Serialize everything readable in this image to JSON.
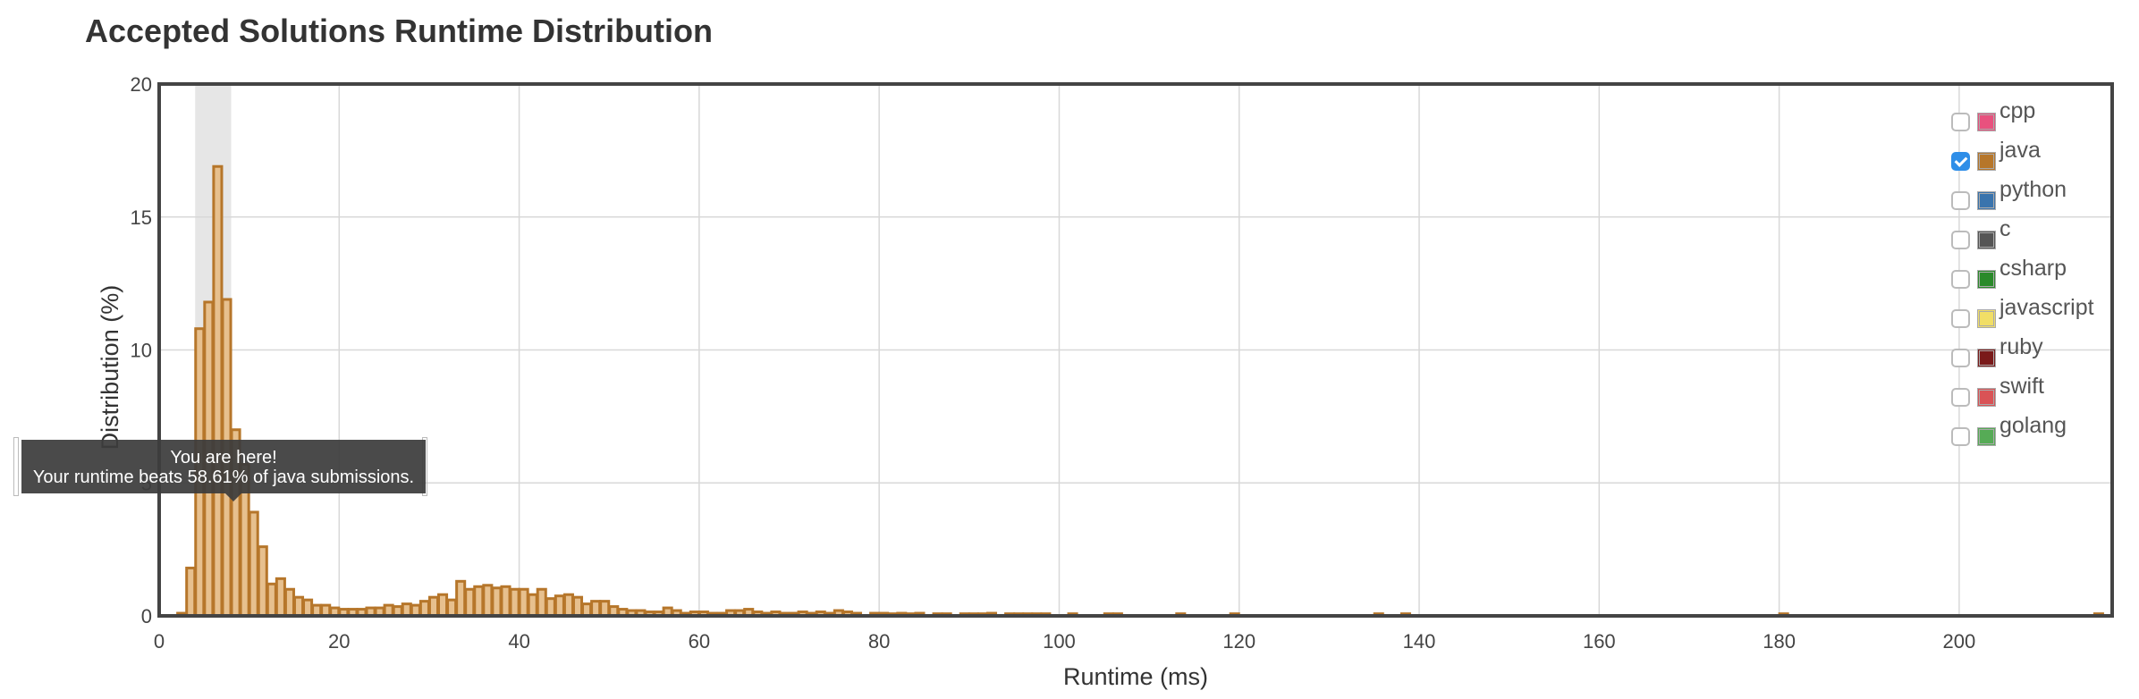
{
  "title": "Accepted Solutions Runtime Distribution",
  "legend": [
    {
      "name": "cpp",
      "color": "#e8517e",
      "checked": false
    },
    {
      "name": "java",
      "color": "#b6762a",
      "checked": true
    },
    {
      "name": "python",
      "color": "#3a74ad",
      "checked": false
    },
    {
      "name": "c",
      "color": "#555555",
      "checked": false
    },
    {
      "name": "csharp",
      "color": "#2a8a2a",
      "checked": false
    },
    {
      "name": "javascript",
      "color": "#f1de66",
      "checked": false
    },
    {
      "name": "ruby",
      "color": "#7a1a1a",
      "checked": false
    },
    {
      "name": "swift",
      "color": "#d95356",
      "checked": false
    },
    {
      "name": "golang",
      "color": "#56ab56",
      "checked": false
    }
  ],
  "tooltip": {
    "line1": "You are here!",
    "line2": "Your runtime beats 58.61% of java submissions."
  },
  "colors": {
    "bar_fill": "#e7c08e",
    "bar_stroke": "#b6762a",
    "highlight": "#e6e6e6",
    "grid": "#d8d8d8",
    "frame": "#444444"
  },
  "chart_data": {
    "type": "bar",
    "title": "Accepted Solutions Runtime Distribution",
    "xlabel": "Runtime (ms)",
    "ylabel": "Distribution (%)",
    "xlim": [
      0,
      217
    ],
    "ylim": [
      0,
      20
    ],
    "xticks": [
      0,
      20,
      40,
      60,
      80,
      100,
      120,
      140,
      160,
      180,
      200
    ],
    "yticks": [
      0,
      5,
      10,
      15,
      20
    ],
    "grid": true,
    "legend_position": "top-right",
    "series_name": "java",
    "highlight_range": [
      4,
      8
    ],
    "bin_width": 1,
    "bins": [
      [
        2,
        0.1
      ],
      [
        3,
        1.8
      ],
      [
        4,
        10.8
      ],
      [
        5,
        11.8
      ],
      [
        6,
        16.9
      ],
      [
        7,
        11.9
      ],
      [
        8,
        7.0
      ],
      [
        9,
        5.7
      ],
      [
        10,
        3.9
      ],
      [
        11,
        2.6
      ],
      [
        12,
        1.2
      ],
      [
        13,
        1.4
      ],
      [
        14,
        1.0
      ],
      [
        15,
        0.7
      ],
      [
        16,
        0.6
      ],
      [
        17,
        0.4
      ],
      [
        18,
        0.4
      ],
      [
        19,
        0.3
      ],
      [
        20,
        0.25
      ],
      [
        21,
        0.25
      ],
      [
        22,
        0.25
      ],
      [
        23,
        0.3
      ],
      [
        24,
        0.3
      ],
      [
        25,
        0.4
      ],
      [
        26,
        0.35
      ],
      [
        27,
        0.45
      ],
      [
        28,
        0.4
      ],
      [
        29,
        0.55
      ],
      [
        30,
        0.7
      ],
      [
        31,
        0.8
      ],
      [
        32,
        0.6
      ],
      [
        33,
        1.3
      ],
      [
        34,
        1.0
      ],
      [
        35,
        1.1
      ],
      [
        36,
        1.15
      ],
      [
        37,
        1.05
      ],
      [
        38,
        1.1
      ],
      [
        39,
        1.0
      ],
      [
        40,
        1.0
      ],
      [
        41,
        0.8
      ],
      [
        42,
        1.0
      ],
      [
        43,
        0.65
      ],
      [
        44,
        0.75
      ],
      [
        45,
        0.8
      ],
      [
        46,
        0.7
      ],
      [
        47,
        0.45
      ],
      [
        48,
        0.55
      ],
      [
        49,
        0.55
      ],
      [
        50,
        0.35
      ],
      [
        51,
        0.25
      ],
      [
        52,
        0.2
      ],
      [
        53,
        0.2
      ],
      [
        54,
        0.15
      ],
      [
        55,
        0.15
      ],
      [
        56,
        0.3
      ],
      [
        57,
        0.2
      ],
      [
        58,
        0.1
      ],
      [
        59,
        0.15
      ],
      [
        60,
        0.15
      ],
      [
        61,
        0.1
      ],
      [
        62,
        0.1
      ],
      [
        63,
        0.2
      ],
      [
        64,
        0.2
      ],
      [
        65,
        0.25
      ],
      [
        66,
        0.15
      ],
      [
        67,
        0.1
      ],
      [
        68,
        0.15
      ],
      [
        69,
        0.1
      ],
      [
        70,
        0.1
      ],
      [
        71,
        0.15
      ],
      [
        72,
        0.1
      ],
      [
        73,
        0.15
      ],
      [
        74,
        0.1
      ],
      [
        75,
        0.2
      ],
      [
        76,
        0.15
      ],
      [
        77,
        0.1
      ],
      [
        79,
        0.1
      ],
      [
        80,
        0.1
      ],
      [
        81,
        0.08
      ],
      [
        82,
        0.1
      ],
      [
        83,
        0.08
      ],
      [
        84,
        0.1
      ],
      [
        86,
        0.08
      ],
      [
        87,
        0.08
      ],
      [
        89,
        0.08
      ],
      [
        90,
        0.08
      ],
      [
        91,
        0.08
      ],
      [
        92,
        0.1
      ],
      [
        94,
        0.08
      ],
      [
        95,
        0.08
      ],
      [
        96,
        0.08
      ],
      [
        97,
        0.08
      ],
      [
        98,
        0.08
      ],
      [
        101,
        0.08
      ],
      [
        105,
        0.08
      ],
      [
        106,
        0.08
      ],
      [
        113,
        0.08
      ],
      [
        119,
        0.08
      ],
      [
        135,
        0.08
      ],
      [
        138,
        0.08
      ],
      [
        180,
        0.08
      ],
      [
        215,
        0.08
      ]
    ]
  }
}
